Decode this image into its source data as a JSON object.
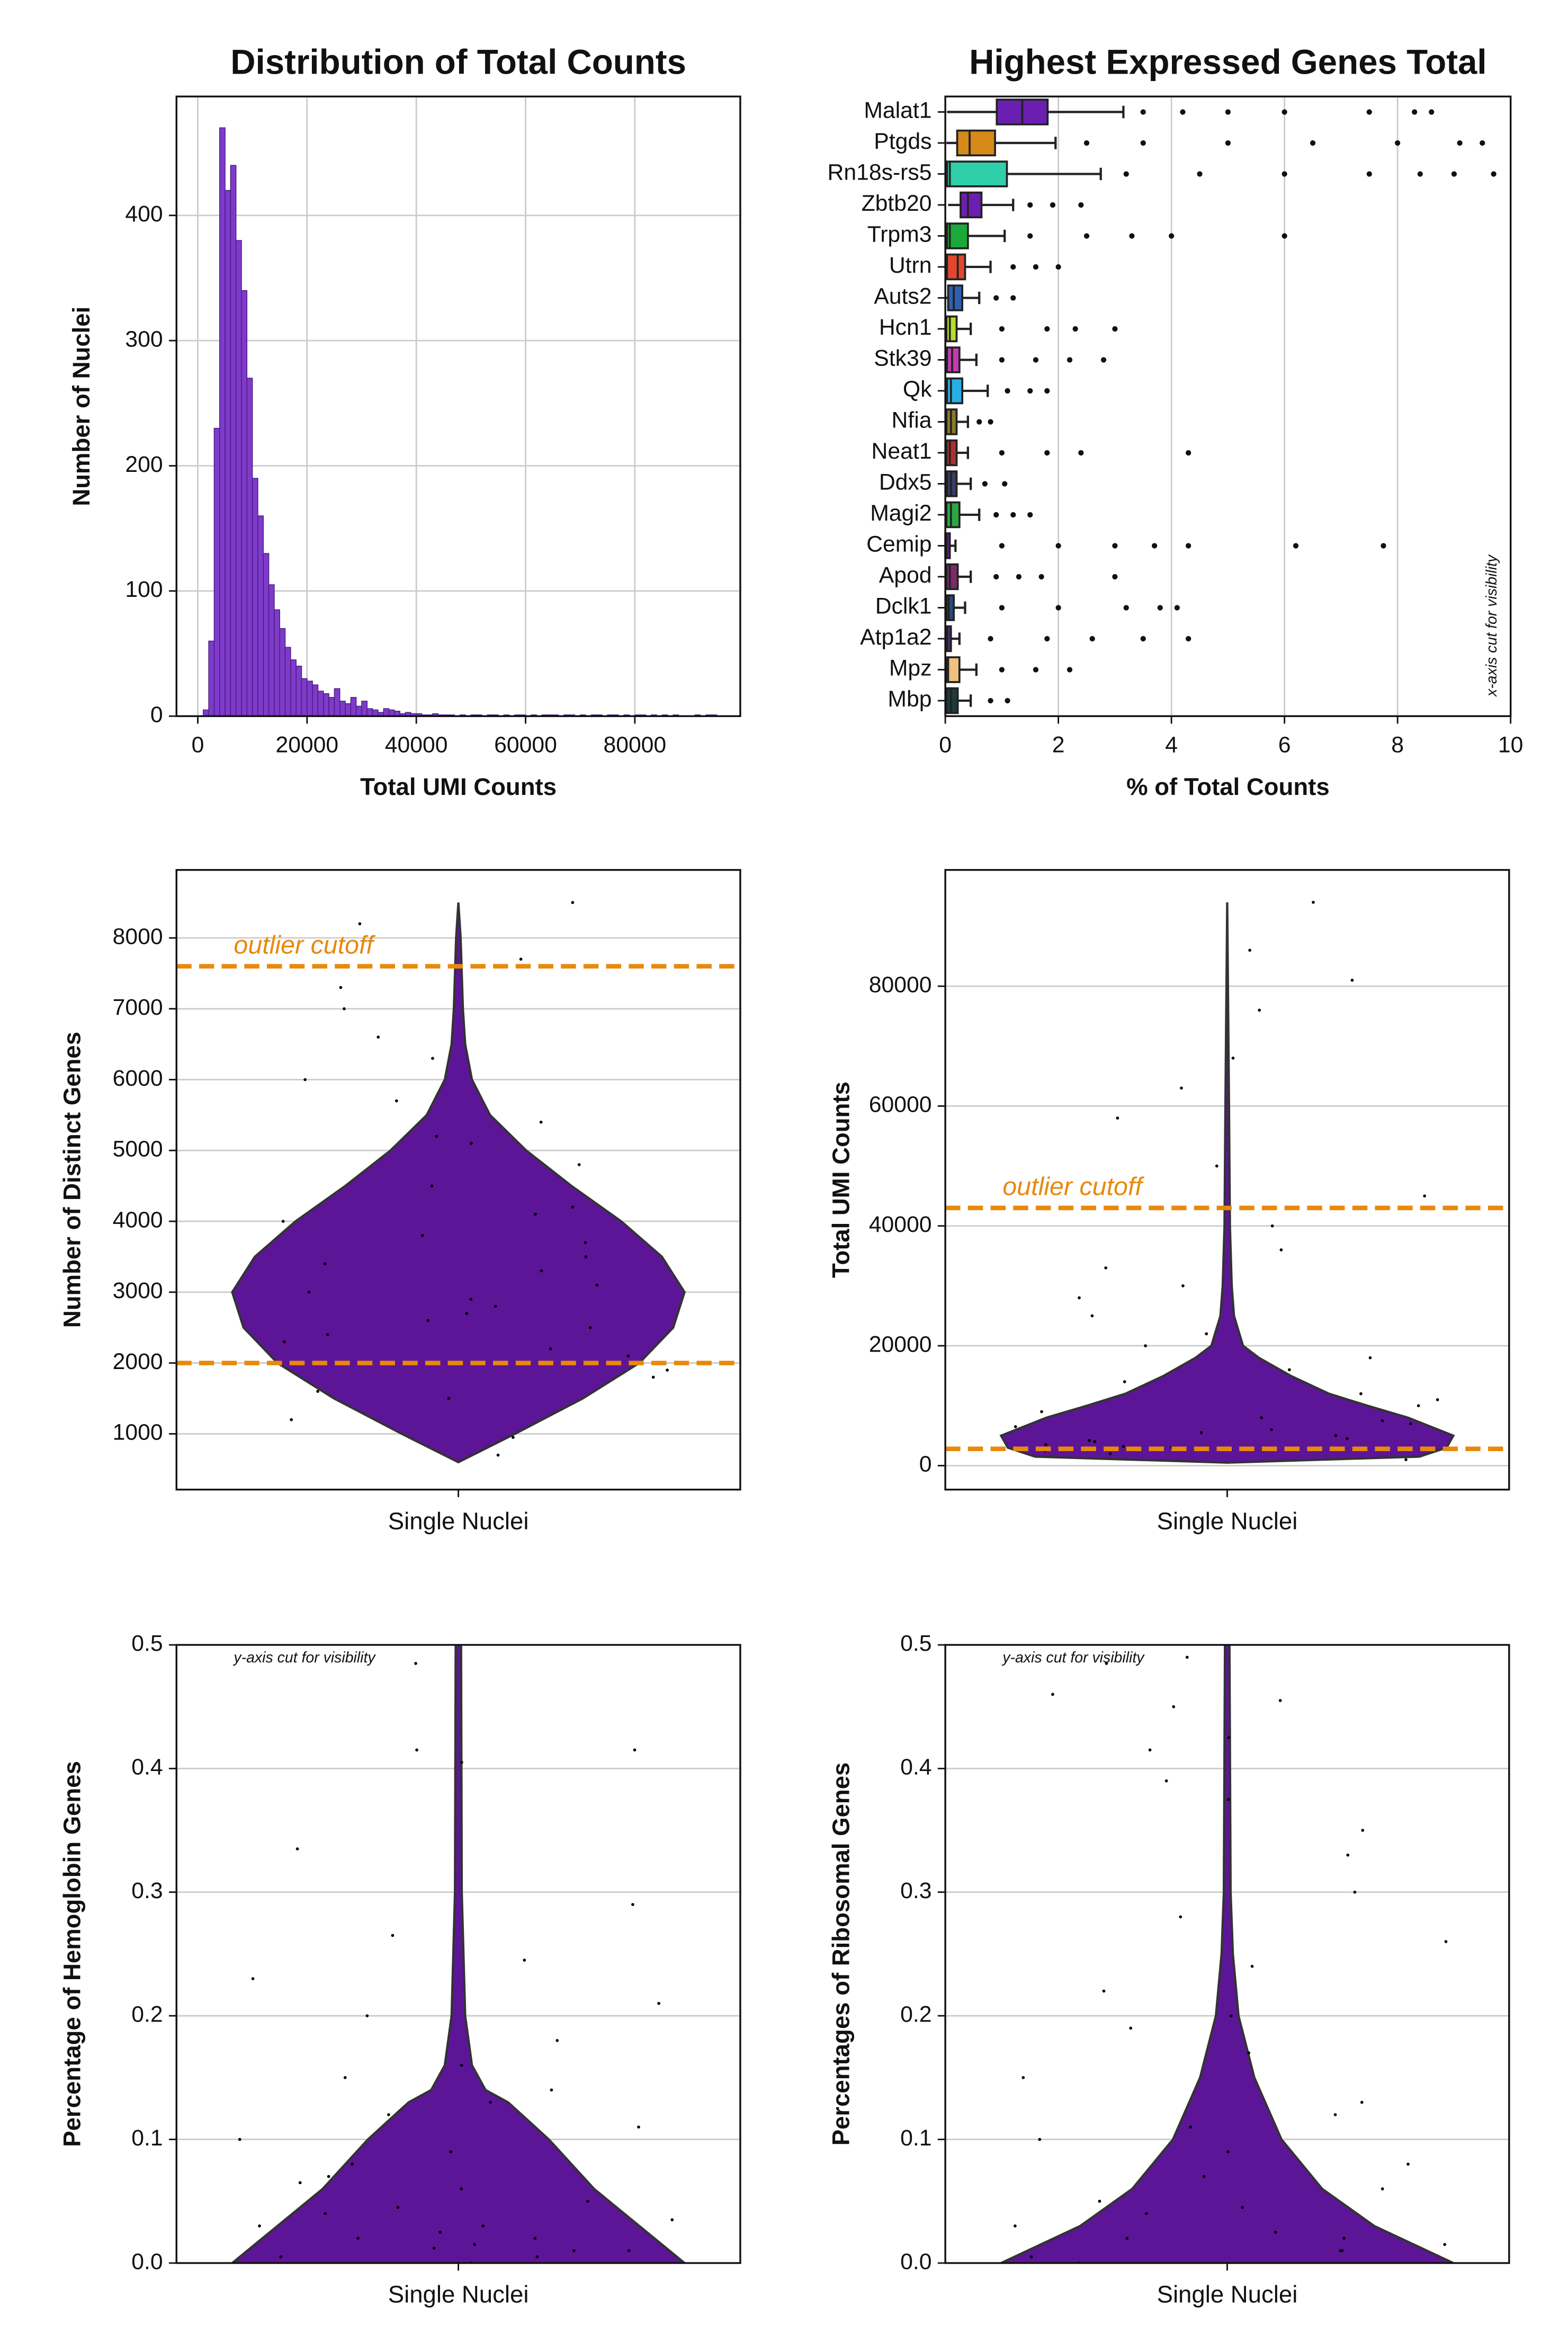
{
  "chart_data": [
    {
      "type": "histogram",
      "title": "Distribution of Total Counts",
      "xlabel": "Total UMI Counts",
      "ylabel": "Number of Nuclei",
      "color": "#7e3bc9",
      "edgecolor": "#4a1a80",
      "grid": true,
      "bins": [
        1000,
        2000,
        3000,
        4000,
        5000,
        6000,
        7000,
        8000,
        9000,
        10000,
        11000,
        12000,
        13000,
        14000,
        15000,
        16000,
        17000,
        18000,
        19000,
        20000,
        21000,
        22000,
        23000,
        24000,
        25000,
        26000,
        27000,
        28000,
        29000,
        30000,
        31000,
        32000,
        33000,
        34000,
        35000,
        36000,
        37000,
        38000,
        39000,
        40000,
        41000,
        42000,
        43000,
        44000,
        45000,
        46000,
        47000,
        48000,
        49000,
        50000,
        51000,
        52000,
        53000,
        54000,
        55000,
        56000,
        57000,
        58000,
        59000,
        60000,
        61000,
        62000,
        63000,
        64000,
        65000,
        66000,
        67000,
        68000,
        69000,
        70000,
        71000,
        72000,
        73000,
        74000,
        75000,
        76000,
        77000,
        78000,
        79000,
        80000,
        81000,
        82000,
        83000,
        84000,
        85000,
        86000,
        87000,
        88000,
        89000,
        90000,
        91000,
        92000,
        93000,
        94000,
        95000
      ],
      "counts": [
        5,
        60,
        230,
        470,
        420,
        440,
        380,
        340,
        270,
        190,
        160,
        130,
        105,
        85,
        70,
        55,
        45,
        40,
        30,
        28,
        25,
        20,
        18,
        15,
        22,
        12,
        10,
        15,
        8,
        12,
        6,
        5,
        3,
        6,
        5,
        4,
        2,
        3,
        2,
        2,
        1,
        1,
        2,
        1,
        1,
        1,
        0,
        1,
        0,
        1,
        1,
        0,
        1,
        1,
        0,
        1,
        0,
        1,
        1,
        0,
        1,
        0,
        1,
        1,
        1,
        0,
        1,
        1,
        0,
        1,
        0,
        1,
        1,
        0,
        1,
        1,
        0,
        1,
        0,
        1,
        1,
        0,
        1,
        0,
        1,
        0,
        1,
        0,
        0,
        0,
        1,
        0,
        1,
        1
      ],
      "xlim": [
        -3900,
        99300
      ],
      "xticks": [
        0,
        20000,
        40000,
        60000,
        80000
      ],
      "ylim": [
        0,
        495
      ],
      "yticks": [
        0,
        100,
        200,
        300,
        400
      ]
    },
    {
      "type": "box",
      "title": "Highest Expressed Genes Total",
      "xlabel": "% of Total Counts",
      "annotation": "x-axis cut for visibility",
      "grid": true,
      "xlim": [
        0,
        10
      ],
      "xticks": [
        0,
        2,
        4,
        6,
        8,
        10
      ],
      "boxes": [
        {
          "name": "Malat1",
          "color": "#6a1fb0",
          "whisker_low": 0.03,
          "q1": 0.91,
          "median": 1.36,
          "q3": 1.81,
          "whisker_high": 3.15,
          "fliers": [
            3.5,
            4.2,
            5.0,
            6.0,
            7.5,
            8.3,
            8.6
          ]
        },
        {
          "name": "Ptgds",
          "color": "#d58a1a",
          "whisker_low": 0.02,
          "q1": 0.21,
          "median": 0.43,
          "q3": 0.88,
          "whisker_high": 1.95,
          "fliers": [
            2.5,
            3.5,
            5.0,
            6.5,
            8.0,
            9.1,
            9.5
          ]
        },
        {
          "name": "Rn18s-rs5",
          "color": "#2ecfa9",
          "whisker_low": 0.01,
          "q1": 0.03,
          "median": 0.08,
          "q3": 1.09,
          "whisker_high": 2.75,
          "fliers": [
            3.2,
            4.5,
            6.0,
            7.5,
            8.4,
            9.0,
            9.7
          ]
        },
        {
          "name": "Zbtb20",
          "color": "#6a1fb0",
          "whisker_low": 0.05,
          "q1": 0.27,
          "median": 0.4,
          "q3": 0.64,
          "whisker_high": 1.2,
          "fliers": [
            1.5,
            1.9,
            2.4
          ]
        },
        {
          "name": "Trpm3",
          "color": "#1aaa3a",
          "whisker_low": 0.0,
          "q1": 0.03,
          "median": 0.08,
          "q3": 0.4,
          "whisker_high": 1.05,
          "fliers": [
            1.5,
            2.5,
            3.3,
            4.0,
            6.0
          ]
        },
        {
          "name": "Utrn",
          "color": "#e0472e",
          "whisker_low": 0.0,
          "q1": 0.03,
          "median": 0.22,
          "q3": 0.35,
          "whisker_high": 0.8,
          "fliers": [
            1.2,
            1.6,
            2.0
          ]
        },
        {
          "name": "Auts2",
          "color": "#2f5fb0",
          "whisker_low": 0.0,
          "q1": 0.05,
          "median": 0.15,
          "q3": 0.3,
          "whisker_high": 0.6,
          "fliers": [
            0.9,
            1.2
          ]
        },
        {
          "name": "Hcn1",
          "color": "#b8dc2a",
          "whisker_low": 0.0,
          "q1": 0.02,
          "median": 0.08,
          "q3": 0.2,
          "whisker_high": 0.45,
          "fliers": [
            1.0,
            1.8,
            2.3,
            3.0
          ]
        },
        {
          "name": "Stk39",
          "color": "#c03cb0",
          "whisker_low": 0.0,
          "q1": 0.03,
          "median": 0.12,
          "q3": 0.25,
          "whisker_high": 0.55,
          "fliers": [
            1.0,
            1.6,
            2.2,
            2.8
          ]
        },
        {
          "name": "Qk",
          "color": "#2aaee8",
          "whisker_low": 0.0,
          "q1": 0.03,
          "median": 0.1,
          "q3": 0.3,
          "whisker_high": 0.75,
          "fliers": [
            1.1,
            1.5,
            1.8
          ]
        },
        {
          "name": "Nfia",
          "color": "#8a7a2a",
          "whisker_low": 0.0,
          "q1": 0.02,
          "median": 0.1,
          "q3": 0.2,
          "whisker_high": 0.4,
          "fliers": [
            0.6,
            0.8
          ]
        },
        {
          "name": "Neat1",
          "color": "#a83232",
          "whisker_low": 0.0,
          "q1": 0.02,
          "median": 0.08,
          "q3": 0.2,
          "whisker_high": 0.4,
          "fliers": [
            1.0,
            1.8,
            2.4,
            4.3
          ]
        },
        {
          "name": "Ddx5",
          "color": "#3a3a6a",
          "whisker_low": 0.0,
          "q1": 0.03,
          "median": 0.1,
          "q3": 0.2,
          "whisker_high": 0.45,
          "fliers": [
            0.7,
            1.05
          ]
        },
        {
          "name": "Magi2",
          "color": "#2aa844",
          "whisker_low": 0.0,
          "q1": 0.02,
          "median": 0.1,
          "q3": 0.25,
          "whisker_high": 0.6,
          "fliers": [
            0.9,
            1.2,
            1.5
          ]
        },
        {
          "name": "Cemip",
          "color": "#5a1f8a",
          "whisker_low": 0.0,
          "q1": 0.0,
          "median": 0.02,
          "q3": 0.08,
          "whisker_high": 0.18,
          "fliers": [
            1.0,
            2.0,
            3.0,
            3.7,
            4.3,
            6.2,
            7.75
          ]
        },
        {
          "name": "Apod",
          "color": "#7a2a6a",
          "whisker_low": 0.0,
          "q1": 0.02,
          "median": 0.08,
          "q3": 0.22,
          "whisker_high": 0.45,
          "fliers": [
            0.9,
            1.3,
            1.7,
            3.0
          ]
        },
        {
          "name": "Dclk1",
          "color": "#2a4a7a",
          "whisker_low": 0.0,
          "q1": 0.02,
          "median": 0.06,
          "q3": 0.15,
          "whisker_high": 0.35,
          "fliers": [
            1.0,
            2.0,
            3.2,
            3.8,
            4.1
          ]
        },
        {
          "name": "Atp1a2",
          "color": "#4a2a6a",
          "whisker_low": 0.0,
          "q1": 0.01,
          "median": 0.03,
          "q3": 0.1,
          "whisker_high": 0.25,
          "fliers": [
            0.8,
            1.8,
            2.6,
            3.5,
            4.3
          ]
        },
        {
          "name": "Mpz",
          "color": "#f0c080",
          "whisker_low": 0.0,
          "q1": 0.02,
          "median": 0.05,
          "q3": 0.25,
          "whisker_high": 0.55,
          "fliers": [
            1.0,
            1.6,
            2.2
          ]
        },
        {
          "name": "Mbp",
          "color": "#1f3a3a",
          "whisker_low": 0.0,
          "q1": 0.02,
          "median": 0.1,
          "q3": 0.22,
          "whisker_high": 0.45,
          "fliers": [
            0.8,
            1.1
          ]
        }
      ]
    },
    {
      "type": "violin",
      "ylabel": "Number of Distinct Genes",
      "categories": [
        "Single Nuclei"
      ],
      "color": "#5d1597",
      "grid": true,
      "ylim": [
        213,
        8960
      ],
      "yticks": [
        1000,
        2000,
        3000,
        4000,
        5000,
        6000,
        7000,
        8000
      ],
      "cutoffs": [
        7600,
        2000
      ],
      "cutoff_color": "#e8890c",
      "annotation": "outlier cutoff",
      "violin": {
        "y": [
          600,
          1000,
          1500,
          2000,
          2500,
          3000,
          3500,
          4000,
          4500,
          5000,
          5500,
          6000,
          6500,
          7000,
          7500,
          8000,
          8500
        ],
        "density": [
          0,
          0.25,
          0.55,
          0.8,
          0.95,
          1.0,
          0.9,
          0.72,
          0.5,
          0.3,
          0.14,
          0.06,
          0.03,
          0.02,
          0.015,
          0.01,
          0
        ]
      },
      "points": [
        700,
        950,
        1200,
        1500,
        1800,
        2100,
        2300,
        2600,
        2800,
        2900,
        3100,
        3300,
        3500,
        3800,
        4000,
        4200,
        4500,
        4800,
        5100,
        5400,
        5700,
        6000,
        6300,
        6600,
        7000,
        7300,
        7700,
        8200,
        8500,
        2500,
        3000,
        2700,
        3400,
        1900,
        2200,
        4100,
        3700,
        2400,
        1600,
        5200
      ]
    },
    {
      "type": "violin",
      "ylabel": "Total UMI Counts",
      "categories": [
        "Single Nuclei"
      ],
      "color": "#5d1597",
      "grid": true,
      "ylim": [
        -4000,
        99400
      ],
      "yticks": [
        0,
        20000,
        40000,
        60000,
        80000
      ],
      "cutoffs": [
        43000,
        2800
      ],
      "cutoff_color": "#e8890c",
      "annotation": "outlier cutoff",
      "violin": {
        "y": [
          500,
          1500,
          3000,
          5000,
          8000,
          10000,
          12000,
          15000,
          18000,
          20000,
          25000,
          30000,
          40000,
          60000,
          94000
        ],
        "density": [
          0,
          0.85,
          0.97,
          1.0,
          0.8,
          0.62,
          0.45,
          0.28,
          0.14,
          0.07,
          0.03,
          0.02,
          0.012,
          0.008,
          0
        ]
      },
      "points": [
        1000,
        2000,
        2500,
        3000,
        3500,
        4000,
        4500,
        5000,
        5500,
        6000,
        7000,
        8000,
        9000,
        10000,
        11000,
        12000,
        14000,
        16000,
        18000,
        20000,
        22000,
        25000,
        28000,
        30000,
        33000,
        36000,
        40000,
        45000,
        50000,
        58000,
        63000,
        68000,
        76000,
        81000,
        86000,
        94000,
        4200,
        6500,
        3200,
        7500
      ]
    },
    {
      "type": "violin",
      "ylabel": "Percentage of Hemoglobin Genes",
      "categories": [
        "Single Nuclei"
      ],
      "color": "#5d1597",
      "grid": true,
      "ylim": [
        0,
        0.5
      ],
      "yticks": [
        {
          "value": 0,
          "label": "0.0"
        },
        0.1,
        0.2,
        0.3,
        0.4,
        0.5
      ],
      "annotation": "y-axis cut for visibility",
      "violin": {
        "y": [
          0,
          0.03,
          0.06,
          0.1,
          0.13,
          0.14,
          0.16,
          0.2,
          0.3,
          0.5
        ],
        "density": [
          1.0,
          0.8,
          0.6,
          0.4,
          0.22,
          0.12,
          0.06,
          0.03,
          0.015,
          0.012
        ]
      },
      "points": [
        0.0,
        0.005,
        0.01,
        0.015,
        0.02,
        0.025,
        0.03,
        0.04,
        0.05,
        0.06,
        0.07,
        0.08,
        0.09,
        0.1,
        0.11,
        0.12,
        0.13,
        0.14,
        0.15,
        0.16,
        0.18,
        0.2,
        0.21,
        0.23,
        0.245,
        0.265,
        0.29,
        0.335,
        0.405,
        0.415,
        0.415,
        0.485,
        0.01,
        0.02,
        0.03,
        0.005,
        0.045,
        0.065,
        0.035,
        0.012
      ]
    },
    {
      "type": "violin",
      "ylabel": "Percentages of Ribosomal Genes",
      "categories": [
        "Single Nuclei"
      ],
      "color": "#5d1597",
      "grid": true,
      "ylim": [
        0,
        0.5
      ],
      "yticks": [
        {
          "value": 0,
          "label": "0.0"
        },
        0.1,
        0.2,
        0.3,
        0.4,
        0.5
      ],
      "annotation": "y-axis cut for visibility",
      "violin": {
        "y": [
          0,
          0.03,
          0.06,
          0.1,
          0.15,
          0.2,
          0.25,
          0.3,
          0.5
        ],
        "density": [
          1.0,
          0.65,
          0.42,
          0.24,
          0.12,
          0.05,
          0.025,
          0.015,
          0.01
        ]
      },
      "points": [
        0.0,
        0.005,
        0.01,
        0.015,
        0.02,
        0.03,
        0.04,
        0.05,
        0.06,
        0.07,
        0.08,
        0.09,
        0.1,
        0.11,
        0.12,
        0.13,
        0.15,
        0.17,
        0.19,
        0.2,
        0.22,
        0.24,
        0.26,
        0.28,
        0.3,
        0.33,
        0.35,
        0.375,
        0.39,
        0.415,
        0.425,
        0.45,
        0.455,
        0.46,
        0.485,
        0.49,
        0.01,
        0.02,
        0.025,
        0.045
      ]
    }
  ]
}
